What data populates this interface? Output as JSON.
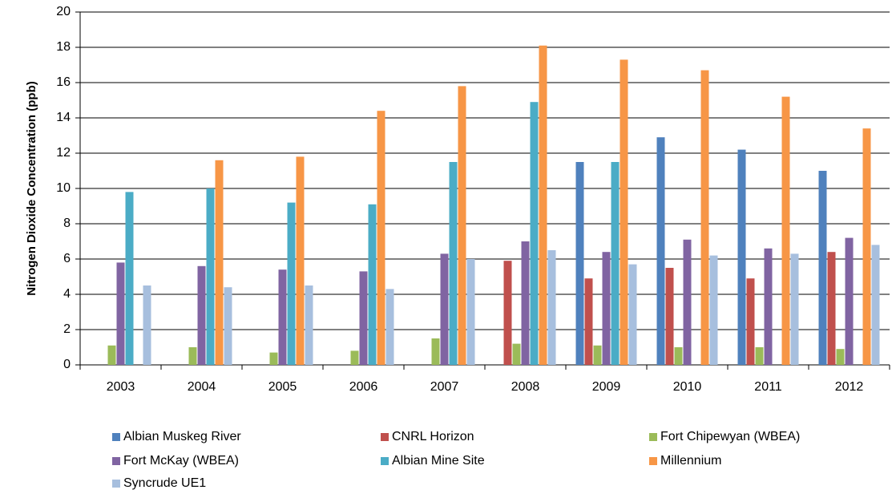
{
  "chart_data": {
    "type": "bar",
    "y_label": "Nitrogen Dioxide Concentration (ppb)",
    "categories": [
      "2003",
      "2004",
      "2005",
      "2006",
      "2007",
      "2008",
      "2009",
      "2010",
      "2011",
      "2012"
    ],
    "series": [
      {
        "name": "Albian Muskeg River",
        "color": "#4f81bd",
        "values": [
          null,
          null,
          null,
          null,
          null,
          null,
          11.5,
          12.9,
          12.2,
          11.0
        ]
      },
      {
        "name": "CNRL Horizon",
        "color": "#c0504d",
        "values": [
          null,
          null,
          null,
          null,
          null,
          5.9,
          4.9,
          5.5,
          4.9,
          6.4
        ]
      },
      {
        "name": "Fort Chipewyan (WBEA)",
        "color": "#9bbb59",
        "values": [
          1.1,
          1.0,
          0.7,
          0.8,
          1.5,
          1.2,
          1.1,
          1.0,
          1.0,
          0.9
        ]
      },
      {
        "name": "Fort McKay (WBEA)",
        "color": "#8064a2",
        "values": [
          5.8,
          5.6,
          5.4,
          5.3,
          6.3,
          7.0,
          6.4,
          7.1,
          6.6,
          7.2
        ]
      },
      {
        "name": "Albian Mine Site",
        "color": "#4bacc6",
        "values": [
          9.8,
          10.0,
          9.2,
          9.1,
          11.5,
          14.9,
          11.5,
          null,
          null,
          null
        ]
      },
      {
        "name": "Millennium",
        "color": "#f79646",
        "values": [
          null,
          11.6,
          11.8,
          14.4,
          15.8,
          18.1,
          17.3,
          16.7,
          15.2,
          13.4
        ]
      },
      {
        "name": "Syncrude UE1",
        "color": "#a7bfde",
        "values": [
          4.5,
          4.4,
          4.5,
          4.3,
          6.0,
          6.5,
          5.7,
          6.2,
          6.3,
          6.8
        ]
      }
    ],
    "ylim": [
      0,
      20
    ],
    "yticks": [
      0,
      2,
      4,
      6,
      8,
      10,
      12,
      14,
      16,
      18,
      20
    ],
    "grid": true,
    "legend": "bottom"
  }
}
